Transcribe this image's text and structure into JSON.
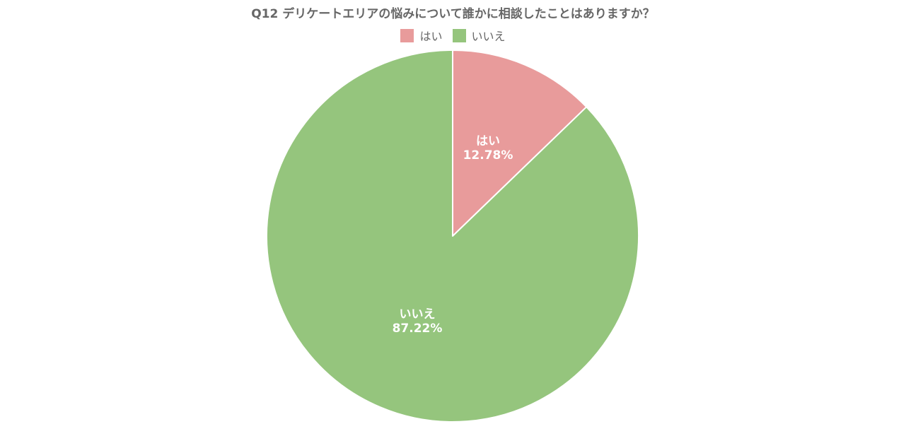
{
  "chart_data": {
    "type": "pie",
    "title": "Q12 デリケートエリアの悩みについて誰かに相談したことはありますか？",
    "legend_position": "top",
    "series": [
      {
        "name": "",
        "slices": [
          {
            "label": "はい",
            "value": 12.78,
            "value_text": "12.78%",
            "color": "#e89b9b"
          },
          {
            "label": "いいえ",
            "value": 87.22,
            "value_text": "87.22%",
            "color": "#95c57d"
          }
        ]
      }
    ]
  }
}
